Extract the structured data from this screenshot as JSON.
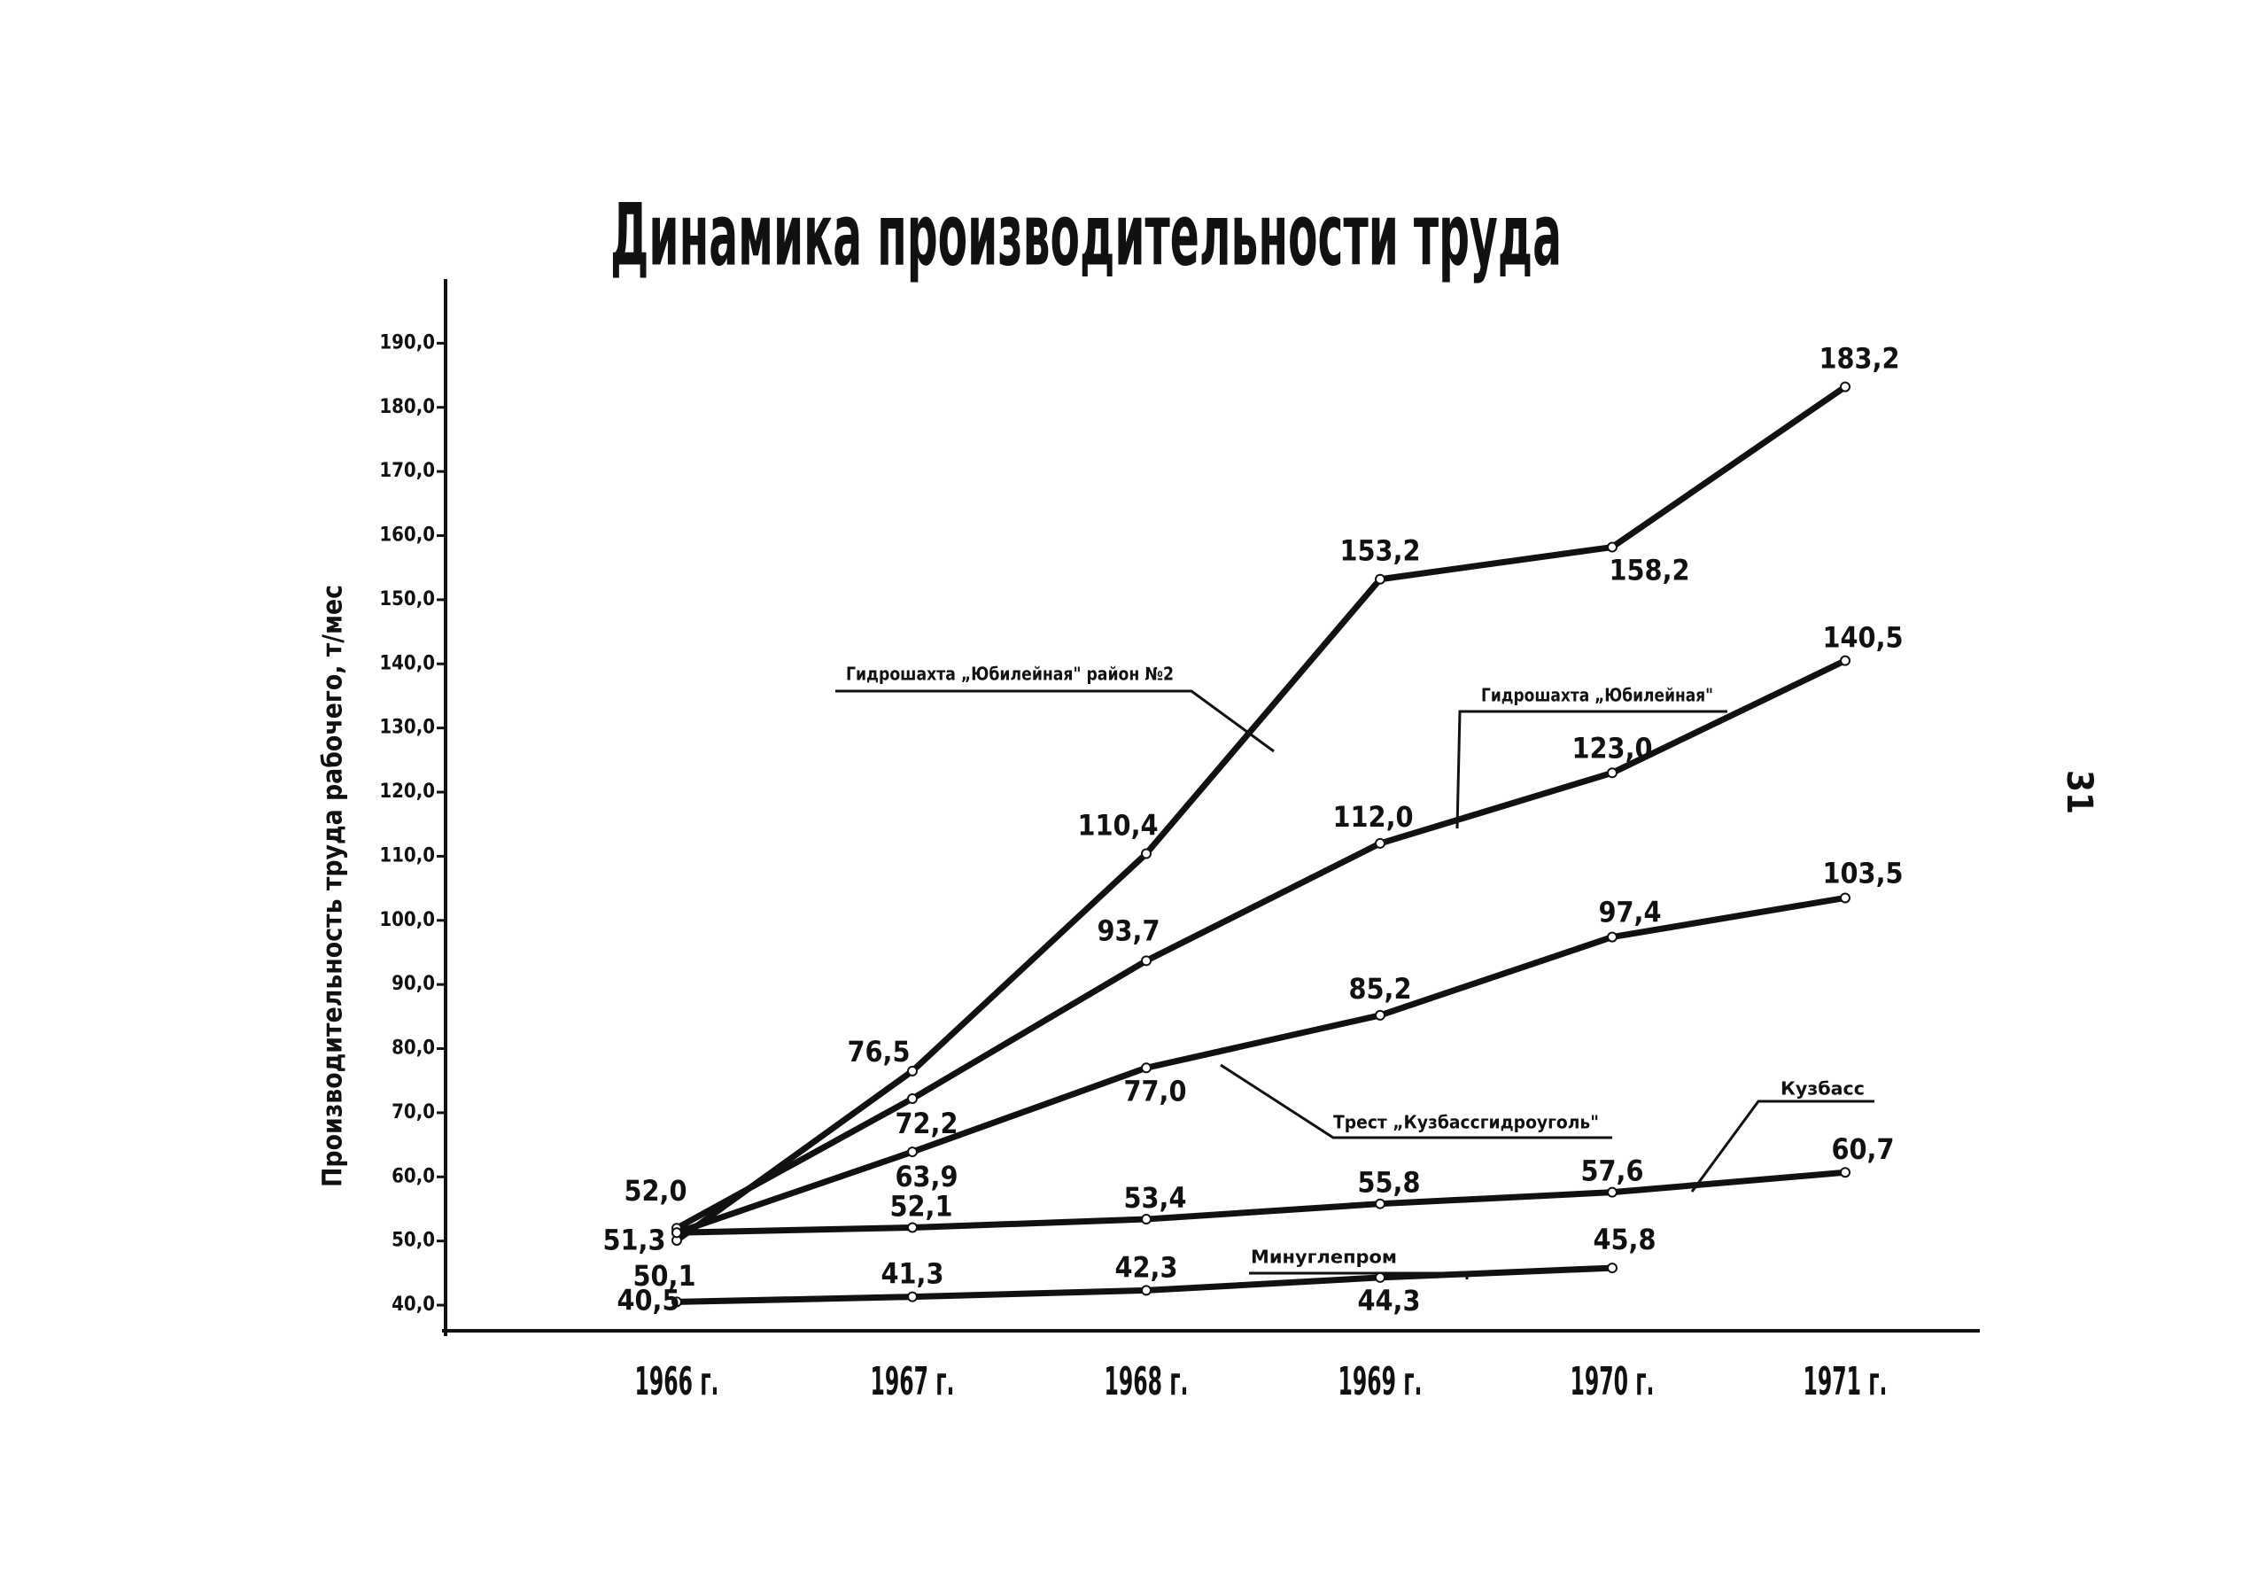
{
  "chart_data": {
    "type": "line",
    "title": "Динамика производительности труда",
    "y_label": "Производительность труда рабочего, т/мес",
    "page_number": "31",
    "categories": [
      "1966 г.",
      "1967 г.",
      "1968 г.",
      "1969 г.",
      "1970 г.",
      "1971 г."
    ],
    "ylim": [
      36,
      200
    ],
    "yticks": [
      {
        "value": 40,
        "label": "40,0"
      },
      {
        "value": 50,
        "label": "50,0"
      },
      {
        "value": 60,
        "label": "60,0"
      },
      {
        "value": 70,
        "label": "70,0"
      },
      {
        "value": 80,
        "label": "80,0"
      },
      {
        "value": 90,
        "label": "90,0"
      },
      {
        "value": 100,
        "label": "100,0"
      },
      {
        "value": 110,
        "label": "110,0"
      },
      {
        "value": 120,
        "label": "120,0"
      },
      {
        "value": 130,
        "label": "130,0"
      },
      {
        "value": 140,
        "label": "140,0"
      },
      {
        "value": 150,
        "label": "150,0"
      },
      {
        "value": 160,
        "label": "160,0"
      },
      {
        "value": 170,
        "label": "170,0"
      },
      {
        "value": 180,
        "label": "180,0"
      },
      {
        "value": 190,
        "label": "190,0"
      }
    ],
    "series": [
      {
        "name": "Гидрошахта „Юбилейная\" район №2",
        "color": "#111111",
        "values": [
          50.1,
          76.5,
          110.4,
          153.2,
          158.2,
          183.2
        ],
        "value_labels": [
          "50,1",
          "76,5",
          "110,4",
          "153,2",
          "158,2",
          "183,2"
        ]
      },
      {
        "name": "Гидрошахта „Юбилейная\"",
        "color": "#111111",
        "values": [
          52.0,
          72.2,
          93.7,
          112.0,
          123.0,
          140.5
        ],
        "value_labels": [
          "52,0",
          "72,2",
          "93,7",
          "112,0",
          "123,0",
          "140,5"
        ]
      },
      {
        "name": "Трест „Кузбассгидроуголь\"",
        "color": "#111111",
        "values": [
          51.3,
          63.9,
          77.0,
          85.2,
          97.4,
          103.5
        ],
        "value_labels": [
          "51,3",
          "63,9",
          "77,0",
          "85,2",
          "97,4",
          "103,5"
        ]
      },
      {
        "name": "Кузбасс",
        "color": "#111111",
        "values": [
          51.3,
          52.1,
          53.4,
          55.8,
          57.6,
          60.7
        ],
        "value_labels": [
          null,
          "52,1",
          "53,4",
          "55,8",
          "57,6",
          "60,7"
        ]
      },
      {
        "name": "Минуглепром",
        "color": "#111111",
        "values": [
          40.5,
          41.3,
          42.3,
          44.3,
          45.8,
          null
        ],
        "value_labels": [
          "40,5",
          "41,3",
          "42,3",
          "44,3",
          "45,8",
          null
        ]
      }
    ]
  }
}
